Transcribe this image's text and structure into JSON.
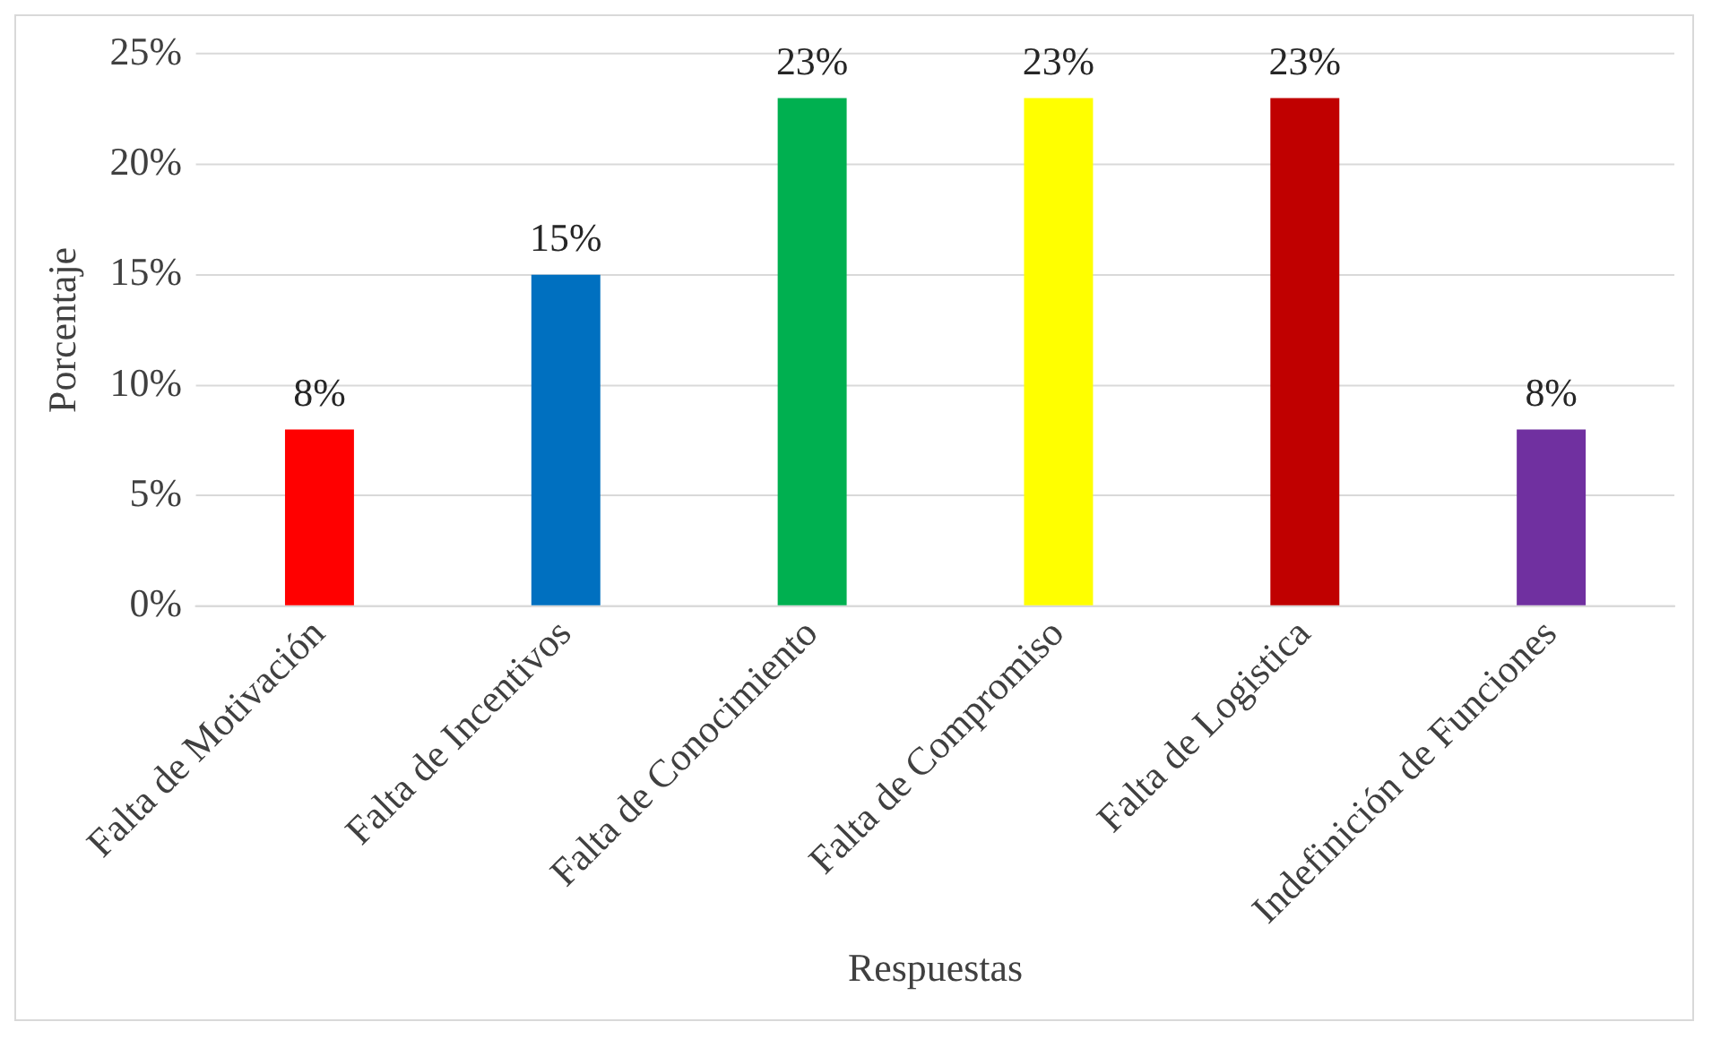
{
  "chart_data": {
    "type": "bar",
    "xlabel": "Respuestas",
    "ylabel": "Porcentaje",
    "categories": [
      "Falta de Motivación",
      "Falta de Incentivos",
      "Falta de Conocimiento",
      "Falta de Compromiso",
      "Falta de Logistica",
      "Indefinición de Funciones"
    ],
    "values": [
      8,
      15,
      23,
      23,
      23,
      8
    ],
    "colors": [
      "#ff0000",
      "#0070c0",
      "#00b050",
      "#ffff00",
      "#c00000",
      "#7030a0"
    ],
    "value_labels": [
      "8%",
      "15%",
      "23%",
      "23%",
      "23%",
      "8%"
    ],
    "ylim": [
      0,
      25
    ],
    "yticks": [
      {
        "value": 0,
        "label": "0%"
      },
      {
        "value": 5,
        "label": "5%"
      },
      {
        "value": 10,
        "label": "10%"
      },
      {
        "value": 15,
        "label": "15%"
      },
      {
        "value": 20,
        "label": "20%"
      },
      {
        "value": 25,
        "label": "25%"
      }
    ],
    "grid": "y",
    "legend": false
  }
}
